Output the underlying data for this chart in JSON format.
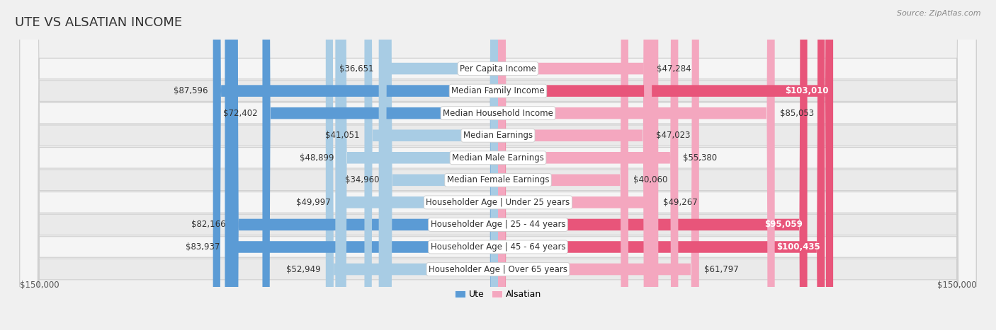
{
  "title": "UTE VS ALSATIAN INCOME",
  "source": "Source: ZipAtlas.com",
  "categories": [
    "Per Capita Income",
    "Median Family Income",
    "Median Household Income",
    "Median Earnings",
    "Median Male Earnings",
    "Median Female Earnings",
    "Householder Age | Under 25 years",
    "Householder Age | 25 - 44 years",
    "Householder Age | 45 - 64 years",
    "Householder Age | Over 65 years"
  ],
  "ute_values": [
    36651,
    87596,
    72402,
    41051,
    48899,
    34960,
    49997,
    82166,
    83937,
    52949
  ],
  "alsatian_values": [
    47284,
    103010,
    85053,
    47023,
    55380,
    40060,
    49267,
    95059,
    100435,
    61797
  ],
  "ute_labels": [
    "$36,651",
    "$87,596",
    "$72,402",
    "$41,051",
    "$48,899",
    "$34,960",
    "$49,997",
    "$82,166",
    "$83,937",
    "$52,949"
  ],
  "alsatian_labels": [
    "$47,284",
    "$103,010",
    "$85,053",
    "$47,023",
    "$55,380",
    "$40,060",
    "$49,267",
    "$95,059",
    "$100,435",
    "$61,797"
  ],
  "ute_colors": [
    "#a8cce4",
    "#5b9bd5",
    "#5b9bd5",
    "#a8cce4",
    "#a8cce4",
    "#a8cce4",
    "#a8cce4",
    "#5b9bd5",
    "#5b9bd5",
    "#a8cce4"
  ],
  "alsatian_colors": [
    "#f4a7bf",
    "#e8557a",
    "#f4a7bf",
    "#f4a7bf",
    "#f4a7bf",
    "#f4a7bf",
    "#f4a7bf",
    "#e8557a",
    "#e8557a",
    "#f4a7bf"
  ],
  "ute_text_colors": [
    "#333333",
    "#333333",
    "#333333",
    "#333333",
    "#333333",
    "#333333",
    "#333333",
    "#333333",
    "#333333",
    "#333333"
  ],
  "alsatian_text_white": [
    false,
    true,
    false,
    false,
    false,
    false,
    false,
    true,
    true,
    false
  ],
  "ute_text_inside": [
    false,
    false,
    false,
    false,
    false,
    false,
    false,
    false,
    false,
    false
  ],
  "max_val": 150000,
  "bg_color": "#f0f0f0",
  "row_colors": [
    "#f5f5f5",
    "#eaeaea",
    "#f5f5f5",
    "#eaeaea",
    "#f5f5f5",
    "#eaeaea",
    "#f5f5f5",
    "#eaeaea",
    "#f5f5f5",
    "#eaeaea"
  ],
  "title_fontsize": 13,
  "cat_fontsize": 8.5,
  "value_fontsize": 8.5,
  "legend_fontsize": 9,
  "ute_legend_color": "#5b9bd5",
  "alsatian_legend_color": "#f4a7bf"
}
